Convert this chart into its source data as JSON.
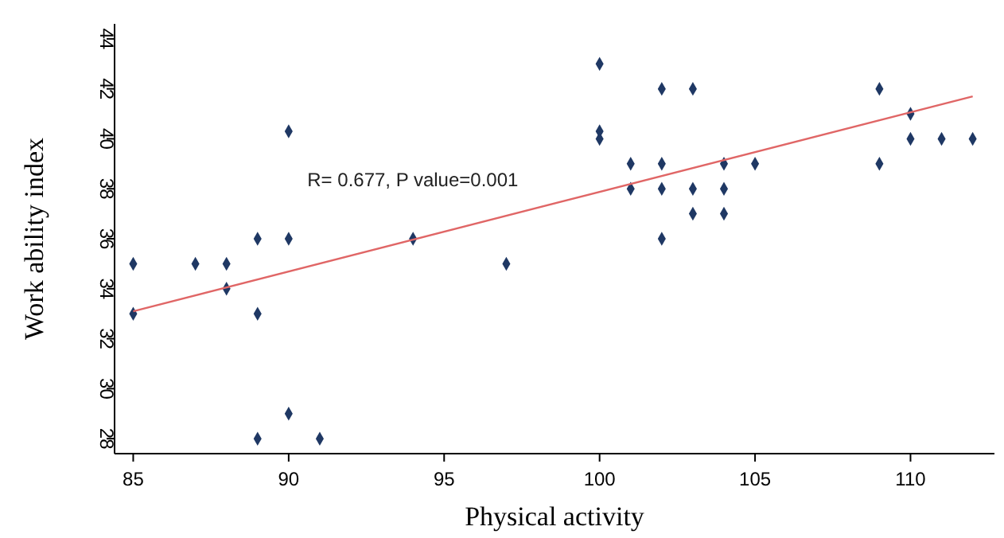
{
  "chart_data": {
    "type": "scatter",
    "xlabel": "Physical activity",
    "ylabel": "Work ability index",
    "xlim": [
      84.4,
      112.7
    ],
    "ylim": [
      27.4,
      44.6
    ],
    "xticks": [
      85,
      90,
      95,
      100,
      105,
      110
    ],
    "yticks": [
      28,
      30,
      32,
      34,
      36,
      38,
      40,
      42,
      44
    ],
    "marker": "diamond",
    "grid": false,
    "annotations": [
      "R= 0.677, P value=0.001"
    ],
    "series": [
      {
        "color": "#1f3864",
        "x": [
          85,
          85,
          87,
          88,
          88,
          89,
          89,
          89,
          90,
          90,
          90,
          91,
          94,
          97,
          100,
          100,
          100,
          101,
          101,
          102,
          102,
          102,
          102,
          103,
          103,
          103,
          104,
          104,
          104,
          105,
          109,
          109,
          110,
          110,
          111,
          112
        ],
        "values": [
          35,
          33,
          35,
          35,
          34,
          36,
          33,
          28,
          40.3,
          36,
          29,
          28,
          36,
          35,
          43,
          40.3,
          40,
          39,
          38,
          42,
          39,
          38,
          36,
          42,
          38,
          37,
          39,
          38,
          37,
          39,
          42,
          39,
          41,
          40,
          40,
          40
        ]
      },
      {
        "type": "line",
        "marker": "none",
        "color": "#e06666",
        "x": [
          85,
          112
        ],
        "values": [
          33.1,
          41.7
        ]
      }
    ]
  }
}
